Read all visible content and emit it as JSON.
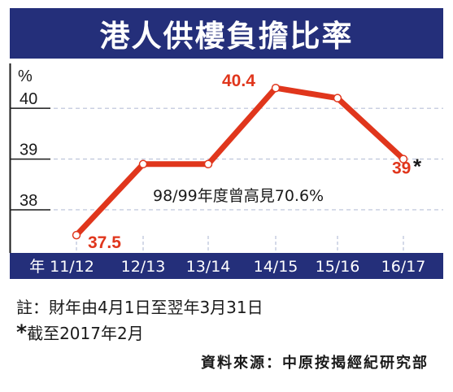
{
  "chart_data": {
    "type": "line",
    "title": "港人供樓負擔比率",
    "unit_label": "%",
    "x_axis_prefix": "年",
    "categories": [
      "11/12",
      "12/13",
      "13/14",
      "14/15",
      "15/16",
      "16/17"
    ],
    "values": [
      37.5,
      38.9,
      38.9,
      40.4,
      40.2,
      39.0
    ],
    "data_labels": [
      {
        "index": 0,
        "text": "37.5"
      },
      {
        "index": 3,
        "text": "40.4"
      },
      {
        "index": 5,
        "text": "39",
        "suffix": "*"
      }
    ],
    "y_ticks": [
      "40",
      "39",
      "38"
    ],
    "ylim": [
      37.15,
      40.82
    ],
    "grid": "horizontal dashed",
    "annotation": "98/99年度曾高見70.6%",
    "colors": {
      "line": "#e0361c",
      "axis_bar": "#242f7a",
      "grid": "#b8c0d8"
    }
  },
  "notes": {
    "line1": "註：財年由4月1日至翌年3月31日",
    "line2_star": "*",
    "line2": "截至2017年2月"
  },
  "source": "資料來源：中原按揭經紀研究部"
}
